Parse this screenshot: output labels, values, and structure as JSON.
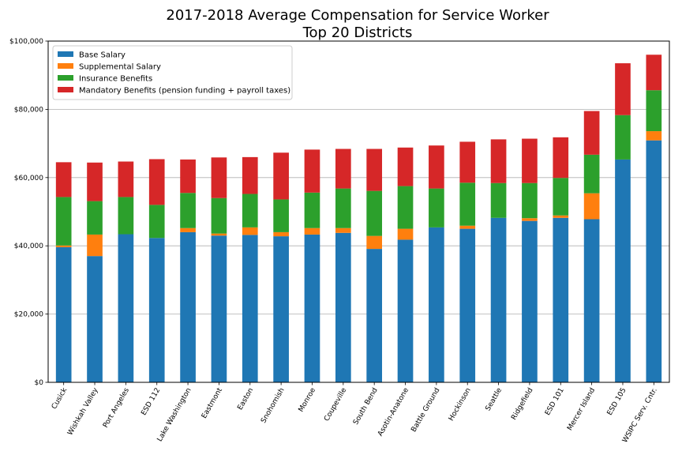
{
  "chart_data": {
    "type": "bar",
    "stacked": true,
    "title": "2017-2018 Average Compensation for Service Worker",
    "subtitle": "Top 20 Districts",
    "xlabel": "",
    "ylabel": "",
    "ylim": [
      0,
      100000
    ],
    "yticks": [
      0,
      20000,
      40000,
      60000,
      80000,
      100000
    ],
    "ytick_labels": [
      "$0",
      "$20,000",
      "$40,000",
      "$60,000",
      "$80,000",
      "$100,000"
    ],
    "grid": "horizontal",
    "legend_position": "top-left",
    "categories": [
      "Cusick",
      "Wishkah Valley",
      "Port Angeles",
      "ESD 112",
      "Lake Washington",
      "Eastmont",
      "Easton",
      "Snohomish",
      "Monroe",
      "Coupeville",
      "South Bend",
      "Asotin-Anatone",
      "Battle Ground",
      "Hockinson",
      "Seattle",
      "Ridgefield",
      "ESD 101",
      "Mercer Island",
      "ESD 105",
      "WSIPC Serv. Cntr."
    ],
    "series": [
      {
        "name": "Base Salary",
        "color": "#1f77b4",
        "values": [
          39600,
          37000,
          43400,
          42300,
          44000,
          43000,
          43200,
          42800,
          43300,
          43800,
          39100,
          41800,
          45400,
          45000,
          48200,
          47300,
          48200,
          47800,
          65300,
          70900
        ]
      },
      {
        "name": "Supplemental Salary",
        "color": "#ff7f0e",
        "values": [
          500,
          6300,
          0,
          0,
          1200,
          600,
          2200,
          1200,
          1900,
          1400,
          3800,
          3200,
          0,
          900,
          0,
          800,
          700,
          7600,
          0,
          2700
        ]
      },
      {
        "name": "Insurance Benefits",
        "color": "#2ca02c",
        "values": [
          14200,
          9800,
          10900,
          9700,
          10300,
          10400,
          9800,
          9600,
          10400,
          11600,
          13200,
          12500,
          11400,
          12600,
          10200,
          10300,
          11000,
          11300,
          13000,
          12000
        ]
      },
      {
        "name": "Mandatory Benefits (pension funding + payroll taxes)",
        "color": "#d62728",
        "values": [
          10200,
          11300,
          10400,
          13400,
          9800,
          11900,
          10800,
          13700,
          12600,
          11600,
          12300,
          11300,
          12600,
          12000,
          12800,
          13000,
          11900,
          12800,
          15200,
          10400
        ]
      }
    ]
  }
}
